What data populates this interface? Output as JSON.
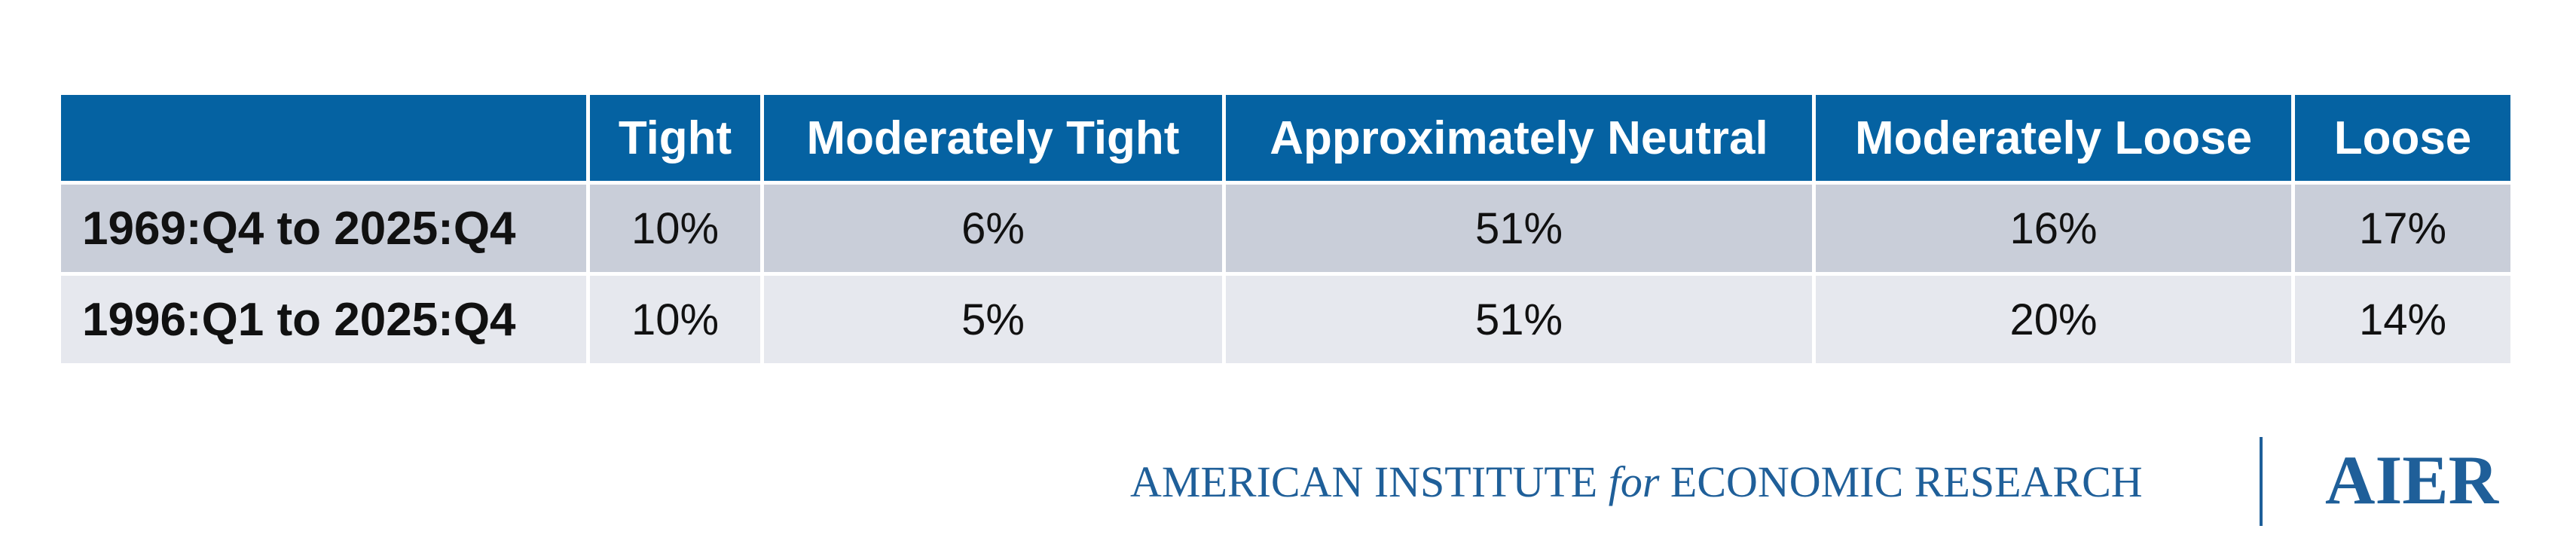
{
  "table": {
    "header": [
      "Tight",
      "Moderately Tight",
      "Approximately Neutral",
      "Moderately Loose",
      "Loose"
    ],
    "rows": [
      {
        "label": "1969:Q4 to 2025:Q4",
        "cells": [
          "10%",
          "6%",
          "51%",
          "16%",
          "17%"
        ]
      },
      {
        "label": "1996:Q1 to 2025:Q4",
        "cells": [
          "10%",
          "5%",
          "51%",
          "20%",
          "14%"
        ]
      }
    ]
  },
  "footer": {
    "org_part1": "AMERICAN INSTITUTE",
    "org_for": "for",
    "org_part2": "ECONOMIC RESEARCH",
    "logo": "AIER"
  }
}
